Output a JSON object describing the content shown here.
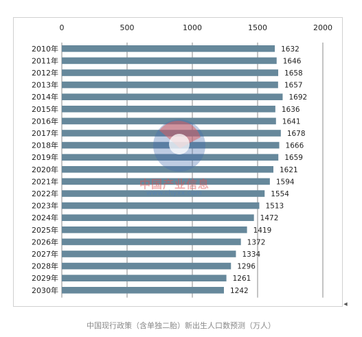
{
  "chart_data": {
    "type": "bar",
    "orientation": "horizontal",
    "title": "",
    "xlabel": "",
    "ylabel": "",
    "xlim": [
      0,
      2000
    ],
    "x_ticks": [
      "0",
      "500",
      "1000",
      "1500",
      "2000"
    ],
    "x_axis_position": "top",
    "grid": true,
    "categories": [
      "2010年",
      "2011年",
      "2012年",
      "2013年",
      "2014年",
      "2015年",
      "2016年",
      "2017年",
      "2018年",
      "2019年",
      "2020年",
      "2021年",
      "2022年",
      "2023年",
      "2024年",
      "2025年",
      "2026年",
      "2027年",
      "2028年",
      "2029年",
      "2030年"
    ],
    "values": [
      1632,
      1646,
      1658,
      1657,
      1692,
      1636,
      1641,
      1678,
      1666,
      1659,
      1621,
      1594,
      1554,
      1513,
      1472,
      1419,
      1372,
      1334,
      1296,
      1261,
      1242
    ],
    "bar_color": "#66889b"
  },
  "watermark": {
    "line1": "中国产业信息",
    "line2": "www.chyxx.com"
  },
  "caption": "中国现行政策（含单独二胎）新出生人口数预测（万人）"
}
